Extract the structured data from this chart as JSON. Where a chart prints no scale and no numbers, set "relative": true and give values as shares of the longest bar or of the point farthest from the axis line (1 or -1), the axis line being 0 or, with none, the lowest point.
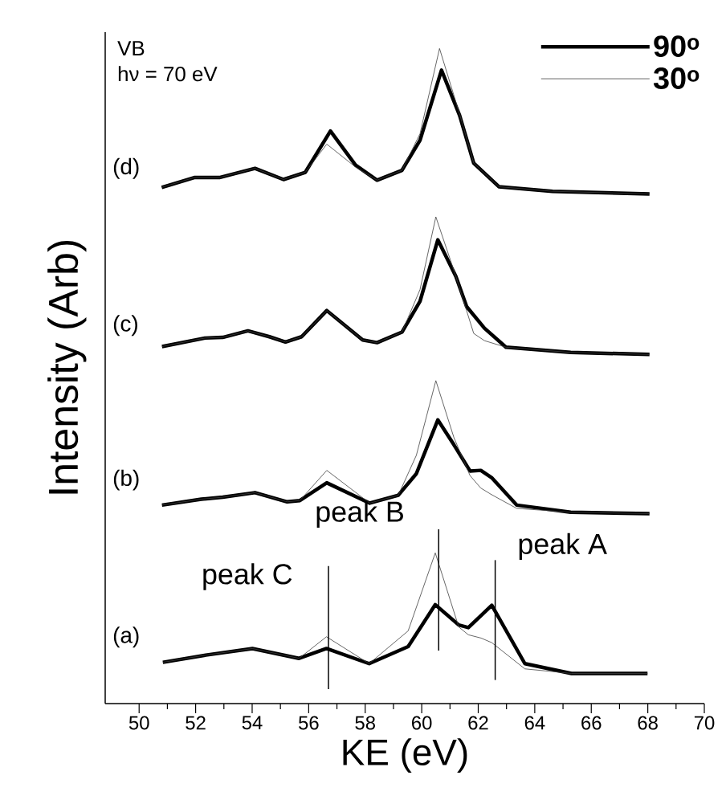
{
  "chart_data": {
    "type": "line",
    "relative": true,
    "xlabel": "KE (eV)",
    "ylabel": "Intensity (Arb)",
    "xlim": [
      48.8,
      70
    ],
    "xticks": [
      50,
      52,
      54,
      56,
      58,
      60,
      62,
      64,
      66,
      68,
      70
    ],
    "legend": "top right",
    "marker": "none",
    "line_style": "solid",
    "grid": false,
    "annotations": [
      "VB",
      "hν = 70 eV",
      "(a)",
      "(b)",
      "(c)",
      "(d)"
    ],
    "ref_lines": [
      {
        "axis": "x",
        "value": 56.7,
        "label": "peak C"
      },
      {
        "axis": "x",
        "value": 60.6,
        "label": "peak B"
      },
      {
        "axis": "x",
        "value": 62.6,
        "label": "peak A"
      }
    ],
    "series": [
      {
        "name": "90$^{o}$",
        "color": "#000000",
        "x": [
          50.84,
          52.36,
          54.01,
          55.66,
          56.63,
          58.14,
          59.52,
          60.48,
          61.31,
          61.65,
          62.48,
          63.65,
          65.3,
          67.99
        ],
        "values": [
          0.063,
          0.074,
          0.084,
          0.069,
          0.084,
          0.061,
          0.087,
          0.151,
          0.12,
          0.116,
          0.15,
          0.061,
          0.046,
          0.046
        ]
      },
      {
        "name": "30$^{o}$",
        "color": "#404040",
        "x": [
          50.84,
          52.36,
          54.01,
          55.66,
          56.63,
          58.14,
          59.52,
          60.48,
          61.31,
          61.65,
          62.1,
          62.48,
          63.65,
          65.3,
          67.99
        ],
        "values": [
          0.063,
          0.074,
          0.084,
          0.069,
          0.102,
          0.061,
          0.111,
          0.23,
          0.117,
          0.105,
          0.1,
          0.093,
          0.053,
          0.046,
          0.046
        ]
      },
      {
        "color": "#000000",
        "x": [
          50.81,
          52.2,
          52.96,
          54.1,
          55.24,
          55.69,
          56.64,
          58.16,
          59.17,
          59.81,
          60.57,
          61.14,
          61.71,
          62.09,
          62.47,
          63.36,
          65.27,
          68.06
        ],
        "values": [
          0.303,
          0.312,
          0.315,
          0.322,
          0.308,
          0.31,
          0.337,
          0.306,
          0.318,
          0.351,
          0.433,
          0.395,
          0.355,
          0.356,
          0.345,
          0.303,
          0.292,
          0.29
        ]
      },
      {
        "color": "#404040",
        "x": [
          50.81,
          52.2,
          52.96,
          54.1,
          55.24,
          55.69,
          56.64,
          58.16,
          59.17,
          59.81,
          60.5,
          61.14,
          61.71,
          62.09,
          62.47,
          63.36,
          65.27,
          68.06
        ],
        "values": [
          0.303,
          0.312,
          0.315,
          0.322,
          0.308,
          0.31,
          0.356,
          0.306,
          0.318,
          0.379,
          0.493,
          0.406,
          0.348,
          0.329,
          0.319,
          0.298,
          0.292,
          0.29
        ]
      },
      {
        "color": "#000000",
        "x": [
          50.81,
          52.33,
          52.96,
          53.85,
          54.61,
          55.18,
          55.75,
          56.64,
          57.91,
          58.42,
          59.3,
          59.94,
          60.57,
          61.21,
          61.59,
          62.22,
          62.98,
          65.27,
          68.06
        ],
        "values": [
          0.545,
          0.558,
          0.559,
          0.569,
          0.56,
          0.552,
          0.56,
          0.6,
          0.555,
          0.551,
          0.567,
          0.614,
          0.708,
          0.652,
          0.606,
          0.573,
          0.544,
          0.536,
          0.533
        ]
      },
      {
        "color": "#404040",
        "x": [
          50.81,
          52.33,
          52.96,
          53.85,
          54.61,
          55.18,
          55.75,
          56.64,
          57.91,
          58.42,
          59.3,
          59.94,
          60.5,
          61.21,
          61.84,
          62.22,
          62.98,
          65.27,
          68.06
        ],
        "values": [
          0.545,
          0.558,
          0.559,
          0.569,
          0.56,
          0.552,
          0.56,
          0.6,
          0.555,
          0.551,
          0.567,
          0.632,
          0.743,
          0.652,
          0.565,
          0.554,
          0.544,
          0.536,
          0.533
        ]
      },
      {
        "color": "#000000",
        "x": [
          50.8,
          51.95,
          52.84,
          54.1,
          55.11,
          55.88,
          56.77,
          57.66,
          58.42,
          59.3,
          59.94,
          60.7,
          61.34,
          61.84,
          62.73,
          64.63,
          68.06
        ],
        "values": [
          0.788,
          0.803,
          0.803,
          0.817,
          0.8,
          0.811,
          0.874,
          0.822,
          0.799,
          0.814,
          0.86,
          0.967,
          0.898,
          0.825,
          0.789,
          0.782,
          0.778
        ]
      },
      {
        "color": "#404040",
        "x": [
          50.8,
          51.95,
          52.84,
          54.1,
          55.11,
          55.88,
          56.64,
          57.66,
          58.42,
          59.3,
          59.94,
          60.63,
          61.34,
          61.84,
          62.73,
          64.63,
          68.06
        ],
        "values": [
          0.788,
          0.803,
          0.803,
          0.817,
          0.8,
          0.811,
          0.854,
          0.819,
          0.799,
          0.814,
          0.87,
          1.0,
          0.9,
          0.825,
          0.789,
          0.782,
          0.778
        ]
      }
    ]
  }
}
